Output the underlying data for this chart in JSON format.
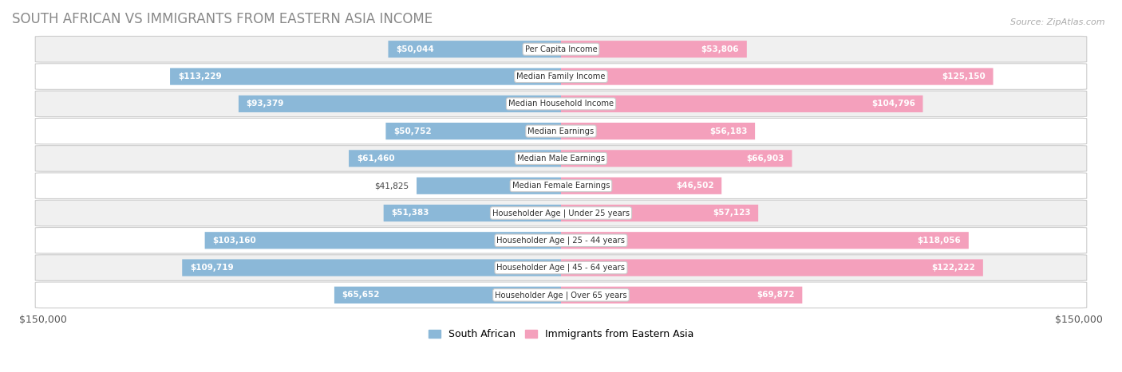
{
  "title": "SOUTH AFRICAN VS IMMIGRANTS FROM EASTERN ASIA INCOME",
  "source": "Source: ZipAtlas.com",
  "categories": [
    "Per Capita Income",
    "Median Family Income",
    "Median Household Income",
    "Median Earnings",
    "Median Male Earnings",
    "Median Female Earnings",
    "Householder Age | Under 25 years",
    "Householder Age | 25 - 44 years",
    "Householder Age | 45 - 64 years",
    "Householder Age | Over 65 years"
  ],
  "south_african": [
    50044,
    113229,
    93379,
    50752,
    61460,
    41825,
    51383,
    103160,
    109719,
    65652
  ],
  "eastern_asia": [
    53806,
    125150,
    104796,
    56183,
    66903,
    46502,
    57123,
    118056,
    122222,
    69872
  ],
  "south_african_labels": [
    "$50,044",
    "$113,229",
    "$93,379",
    "$50,752",
    "$61,460",
    "$41,825",
    "$51,383",
    "$103,160",
    "$109,719",
    "$65,652"
  ],
  "eastern_asia_labels": [
    "$53,806",
    "$125,150",
    "$104,796",
    "$56,183",
    "$66,903",
    "$46,502",
    "$57,123",
    "$118,056",
    "$122,222",
    "$69,872"
  ],
  "sa_color": "#8BB8D8",
  "ea_color": "#F4A0BC",
  "ea_color_bright": "#EE5FA0",
  "sa_color_bright": "#4C94C8",
  "max_val": 150000,
  "bg_color": "#FFFFFF",
  "row_bg_light": "#F0F0F0",
  "row_bg_white": "#FFFFFF",
  "row_border": "#CCCCCC",
  "inside_label_threshold": 0.28,
  "legend_sa": "South African",
  "legend_ea": "Immigrants from Eastern Asia"
}
